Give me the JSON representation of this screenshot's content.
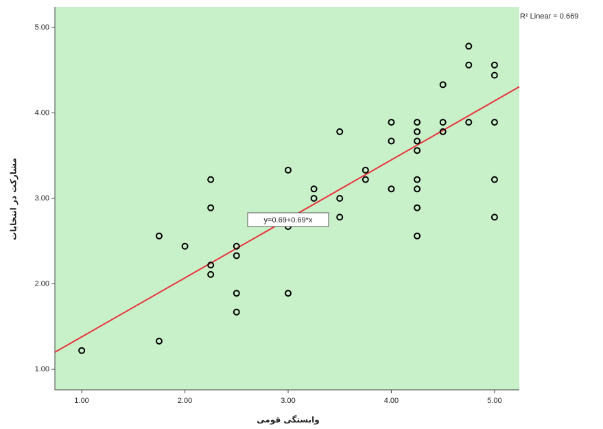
{
  "chart_data": {
    "type": "scatter",
    "x_label": "وابستگی قومی",
    "y_label": "مشارکت در انتخابات",
    "r2_label": "R² Linear = 0.669",
    "fit_label": "y=0.69+0.69*x",
    "fit": {
      "intercept": 0.69,
      "slope": 0.69,
      "color": "#e8323c"
    },
    "x": [
      1.0,
      1.75,
      1.75,
      2.0,
      2.25,
      2.25,
      2.25,
      2.25,
      2.5,
      2.5,
      2.5,
      2.5,
      3.0,
      3.0,
      3.0,
      3.25,
      3.25,
      3.5,
      3.5,
      3.5,
      3.75,
      3.75,
      4.0,
      4.0,
      4.0,
      4.25,
      4.25,
      4.25,
      4.25,
      4.25,
      4.25,
      4.25,
      4.25,
      4.5,
      4.5,
      4.5,
      4.75,
      4.75,
      4.75,
      5.0,
      5.0,
      5.0,
      5.0,
      5.0
    ],
    "values": [
      1.22,
      2.56,
      1.33,
      2.44,
      3.22,
      2.89,
      2.22,
      2.11,
      2.44,
      2.33,
      1.89,
      1.67,
      3.33,
      2.67,
      1.89,
      3.11,
      3.0,
      3.78,
      3.0,
      2.78,
      3.33,
      3.22,
      3.89,
      3.67,
      3.11,
      3.89,
      3.78,
      3.67,
      3.56,
      3.22,
      3.11,
      2.89,
      2.56,
      4.33,
      3.89,
      3.78,
      4.78,
      4.56,
      3.89,
      4.56,
      4.44,
      3.89,
      3.22,
      2.78
    ],
    "color": "#000000",
    "plot_background": "#c9f1c9",
    "xlim": [
      0.74,
      5.24
    ],
    "ylim": [
      0.76,
      5.24
    ],
    "xticks": [
      {
        "value": 1,
        "label": "1.00"
      },
      {
        "value": 2,
        "label": "2.00"
      },
      {
        "value": 3,
        "label": "3.00"
      },
      {
        "value": 4,
        "label": "4.00"
      },
      {
        "value": 5,
        "label": "5.00"
      }
    ],
    "yticks": [
      {
        "value": 1,
        "label": "1.00"
      },
      {
        "value": 2,
        "label": "2.00"
      },
      {
        "value": 3,
        "label": "3.00"
      },
      {
        "value": 4,
        "label": "4.00"
      },
      {
        "value": 5,
        "label": "5.00"
      }
    ]
  }
}
